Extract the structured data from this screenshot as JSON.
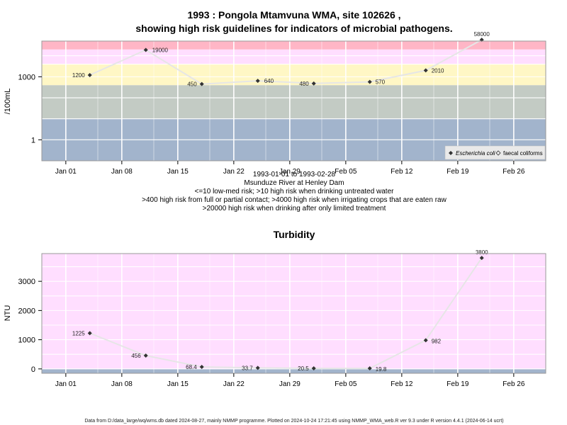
{
  "chart_data": [
    {
      "type": "line",
      "title": "1993 : Pongola Mtamvuna WMA, site 102626 ,",
      "subtitle": "showing high risk guidelines for indicators of microbial pathogens.",
      "ylabel": "/100mL",
      "y_scale": "log",
      "ylim": [
        0.1,
        50000
      ],
      "yticks": [
        {
          "v": 1,
          "label": "1"
        },
        {
          "v": 1000,
          "label": "1000"
        }
      ],
      "x_range": [
        "1992-12-29",
        "1993-03-02"
      ],
      "xticks": [
        {
          "date": "1993-01-01",
          "label": "Jan 01"
        },
        {
          "date": "1993-01-08",
          "label": "Jan 08"
        },
        {
          "date": "1993-01-15",
          "label": "Jan 15"
        },
        {
          "date": "1993-01-22",
          "label": "Jan 22"
        },
        {
          "date": "1993-01-29",
          "label": "Jan 29"
        },
        {
          "date": "1993-02-05",
          "label": "Feb 05"
        },
        {
          "date": "1993-02-12",
          "label": "Feb 12"
        },
        {
          "date": "1993-02-19",
          "label": "Feb 19"
        },
        {
          "date": "1993-02-26",
          "label": "Feb 26"
        }
      ],
      "bands": [
        {
          "from": 0.1,
          "to": 10,
          "color": "#a2b4cc"
        },
        {
          "from": 10,
          "to": 400,
          "color": "#c3cbc4"
        },
        {
          "from": 400,
          "to": 4000,
          "color": "#fff7c5"
        },
        {
          "from": 4000,
          "to": 20000,
          "color": "#ffdeff"
        },
        {
          "from": 20000,
          "to": 50000,
          "color": "#ffb6c6"
        }
      ],
      "series": [
        {
          "name": "Escherichia coli",
          "points": [
            {
              "date": "1993-01-04",
              "value": 1200,
              "label": "1200"
            },
            {
              "date": "1993-01-11",
              "value": 19000,
              "label": "19000"
            },
            {
              "date": "1993-01-18",
              "value": 450,
              "label": "450"
            },
            {
              "date": "1993-01-25",
              "value": 640,
              "label": "640"
            },
            {
              "date": "1993-02-01",
              "value": 480,
              "label": "480"
            },
            {
              "date": "1993-02-08",
              "value": 570,
              "label": "570"
            },
            {
              "date": "1993-02-15",
              "value": 2010,
              "label": "2010"
            },
            {
              "date": "1993-02-22",
              "value": 58000,
              "label": "58000"
            }
          ]
        }
      ],
      "legend": {
        "position": "bottom-right",
        "items": [
          "Escherichia coli",
          "faecal coliforms"
        ]
      },
      "below_text": [
        "1993-01-01 to 1993-02-28",
        "Msunduze River at Henley Dam",
        "<=10 low-med risk; >10 high risk when drinking untreated water",
        ">400 high risk from full or partial contact; >4000 high risk when irrigating crops that are eaten raw",
        ">20000 high risk when drinking after only limited treatment"
      ]
    },
    {
      "type": "line",
      "title": "Turbidity",
      "ylabel": "NTU",
      "ylim": [
        -150,
        3950
      ],
      "yticks": [
        0,
        1000,
        2000,
        3000
      ],
      "x_range": [
        "1992-12-29",
        "1993-03-02"
      ],
      "bands": [
        {
          "from": -150,
          "to": 10,
          "color": "#a2b4cc"
        },
        {
          "from": 10,
          "to": 3950,
          "color": "#ffdeff"
        }
      ],
      "series": [
        {
          "name": "Turbidity",
          "points": [
            {
              "date": "1993-01-04",
              "value": 1225,
              "label": "1225"
            },
            {
              "date": "1993-01-11",
              "value": 456,
              "label": "456"
            },
            {
              "date": "1993-01-18",
              "value": 68.4,
              "label": "68.4"
            },
            {
              "date": "1993-01-25",
              "value": 33.7,
              "label": "33.7"
            },
            {
              "date": "1993-02-01",
              "value": 20.5,
              "label": "20.5"
            },
            {
              "date": "1993-02-08",
              "value": 19.8,
              "label": "19.8"
            },
            {
              "date": "1993-02-15",
              "value": 982,
              "label": "982"
            },
            {
              "date": "1993-02-22",
              "value": 3800,
              "label": "3800"
            }
          ]
        }
      ]
    }
  ],
  "footer": "Data from D:/data_large/wq/wms.db dated 2024-08-27, mainly NMMP programme. Plotted on 2024-10-24 17:21:45 using NMMP_WMA_web.R ver 9.3 under R version 4.4.1 (2024-06-14 ucrt)",
  "colors": {
    "marker": "#333333",
    "line": "#e6e6e6",
    "grid": "#ffffff"
  }
}
